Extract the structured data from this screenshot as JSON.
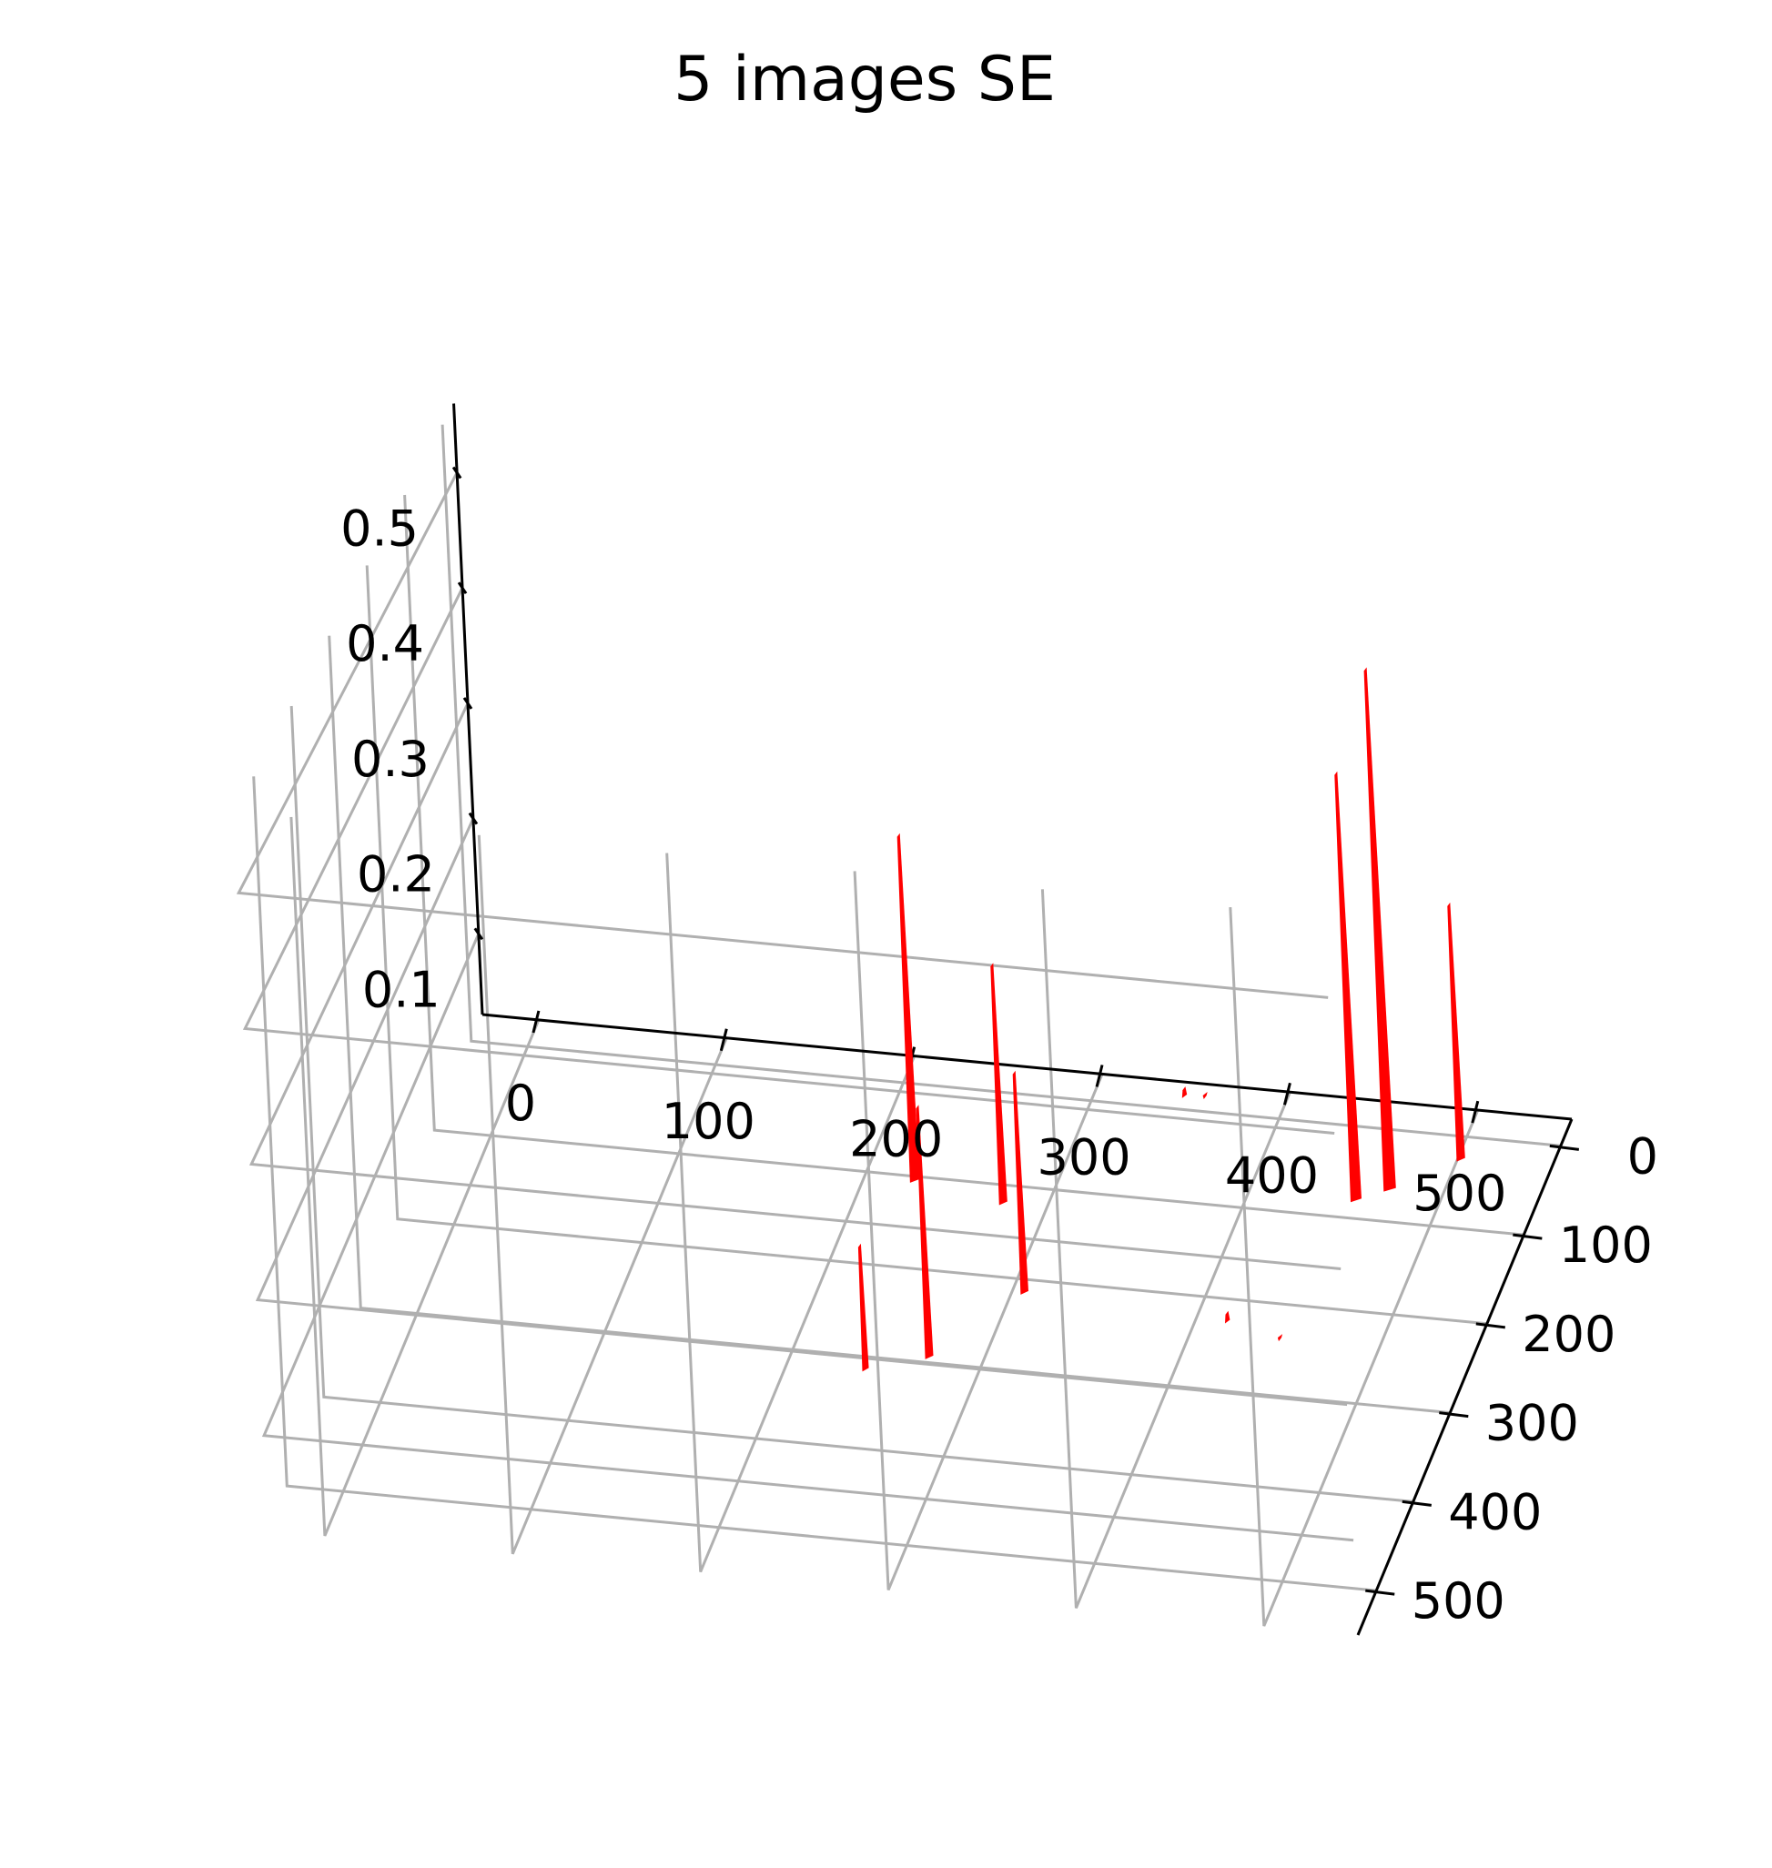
{
  "chart_data": {
    "type": "3d-surface",
    "title": "5 images SE",
    "xlabel": "",
    "ylabel": "",
    "zlabel": "",
    "x_ticks": [
      "0",
      "100",
      "200",
      "300",
      "400",
      "500"
    ],
    "y_ticks": [
      "0",
      "100",
      "200",
      "300",
      "400",
      "500"
    ],
    "z_ticks": [
      "0.1",
      "0.2",
      "0.3",
      "0.4",
      "0.5"
    ],
    "xlim": [
      -30,
      550
    ],
    "ylim": [
      -30,
      550
    ],
    "zlim": [
      0.03,
      0.56
    ],
    "grid": true,
    "surface_color": "#ff0000",
    "peaks": [
      {
        "x": 230,
        "y": 120,
        "z": 0.33
      },
      {
        "x": 280,
        "y": 135,
        "z": 0.24
      },
      {
        "x": 275,
        "y": 310,
        "z": 0.24
      },
      {
        "x": 310,
        "y": 230,
        "z": 0.22
      },
      {
        "x": 245,
        "y": 330,
        "z": 0.14
      },
      {
        "x": 460,
        "y": 95,
        "z": 0.4
      },
      {
        "x": 475,
        "y": 80,
        "z": 0.48
      },
      {
        "x": 505,
        "y": 40,
        "z": 0.26
      },
      {
        "x": 350,
        "y": 0,
        "z": 0.05
      },
      {
        "x": 360,
        "y": -5,
        "z": 0.04
      },
      {
        "x": 420,
        "y": 240,
        "z": 0.05
      },
      {
        "x": 450,
        "y": 250,
        "z": 0.04
      }
    ]
  }
}
